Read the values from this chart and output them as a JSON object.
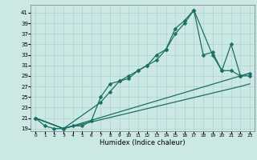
{
  "xlabel": "Humidex (Indice chaleur)",
  "background_color": "#cce8e4",
  "grid_color": "#aad4d0",
  "line_color": "#1a6e66",
  "xlim": [
    -0.5,
    23.5
  ],
  "ylim": [
    18.5,
    42.5
  ],
  "yticks": [
    19,
    21,
    23,
    25,
    27,
    29,
    31,
    33,
    35,
    37,
    39,
    41
  ],
  "xticks": [
    0,
    1,
    2,
    3,
    4,
    5,
    6,
    7,
    8,
    9,
    10,
    11,
    12,
    13,
    14,
    15,
    16,
    17,
    18,
    19,
    20,
    21,
    22,
    23
  ],
  "line1_x": [
    0,
    1,
    2,
    3,
    4,
    5,
    6,
    7,
    8,
    9,
    10,
    11,
    12,
    13,
    14,
    15,
    16,
    17,
    18,
    19,
    20,
    21,
    22,
    23
  ],
  "line1_y": [
    21,
    19.5,
    19,
    19,
    19.5,
    19.5,
    20.5,
    25,
    27.5,
    28,
    28.5,
    30,
    31,
    33,
    34,
    38,
    39.5,
    41.5,
    33,
    33.5,
    30,
    35,
    29,
    29
  ],
  "line2_x": [
    0,
    3,
    7,
    8,
    9,
    10,
    11,
    12,
    13,
    14,
    15,
    16,
    17,
    19,
    20,
    21,
    22,
    23
  ],
  "line2_y": [
    21,
    19,
    24,
    26,
    28,
    29,
    30,
    31,
    32,
    34,
    37,
    39,
    41.5,
    33,
    30,
    30,
    29,
    29.5
  ],
  "line3_x": [
    0,
    3,
    22,
    23
  ],
  "line3_y": [
    21,
    19,
    29,
    29.5
  ],
  "line4_x": [
    0,
    3,
    22,
    23
  ],
  "line4_y": [
    21,
    19,
    27,
    27.5
  ]
}
